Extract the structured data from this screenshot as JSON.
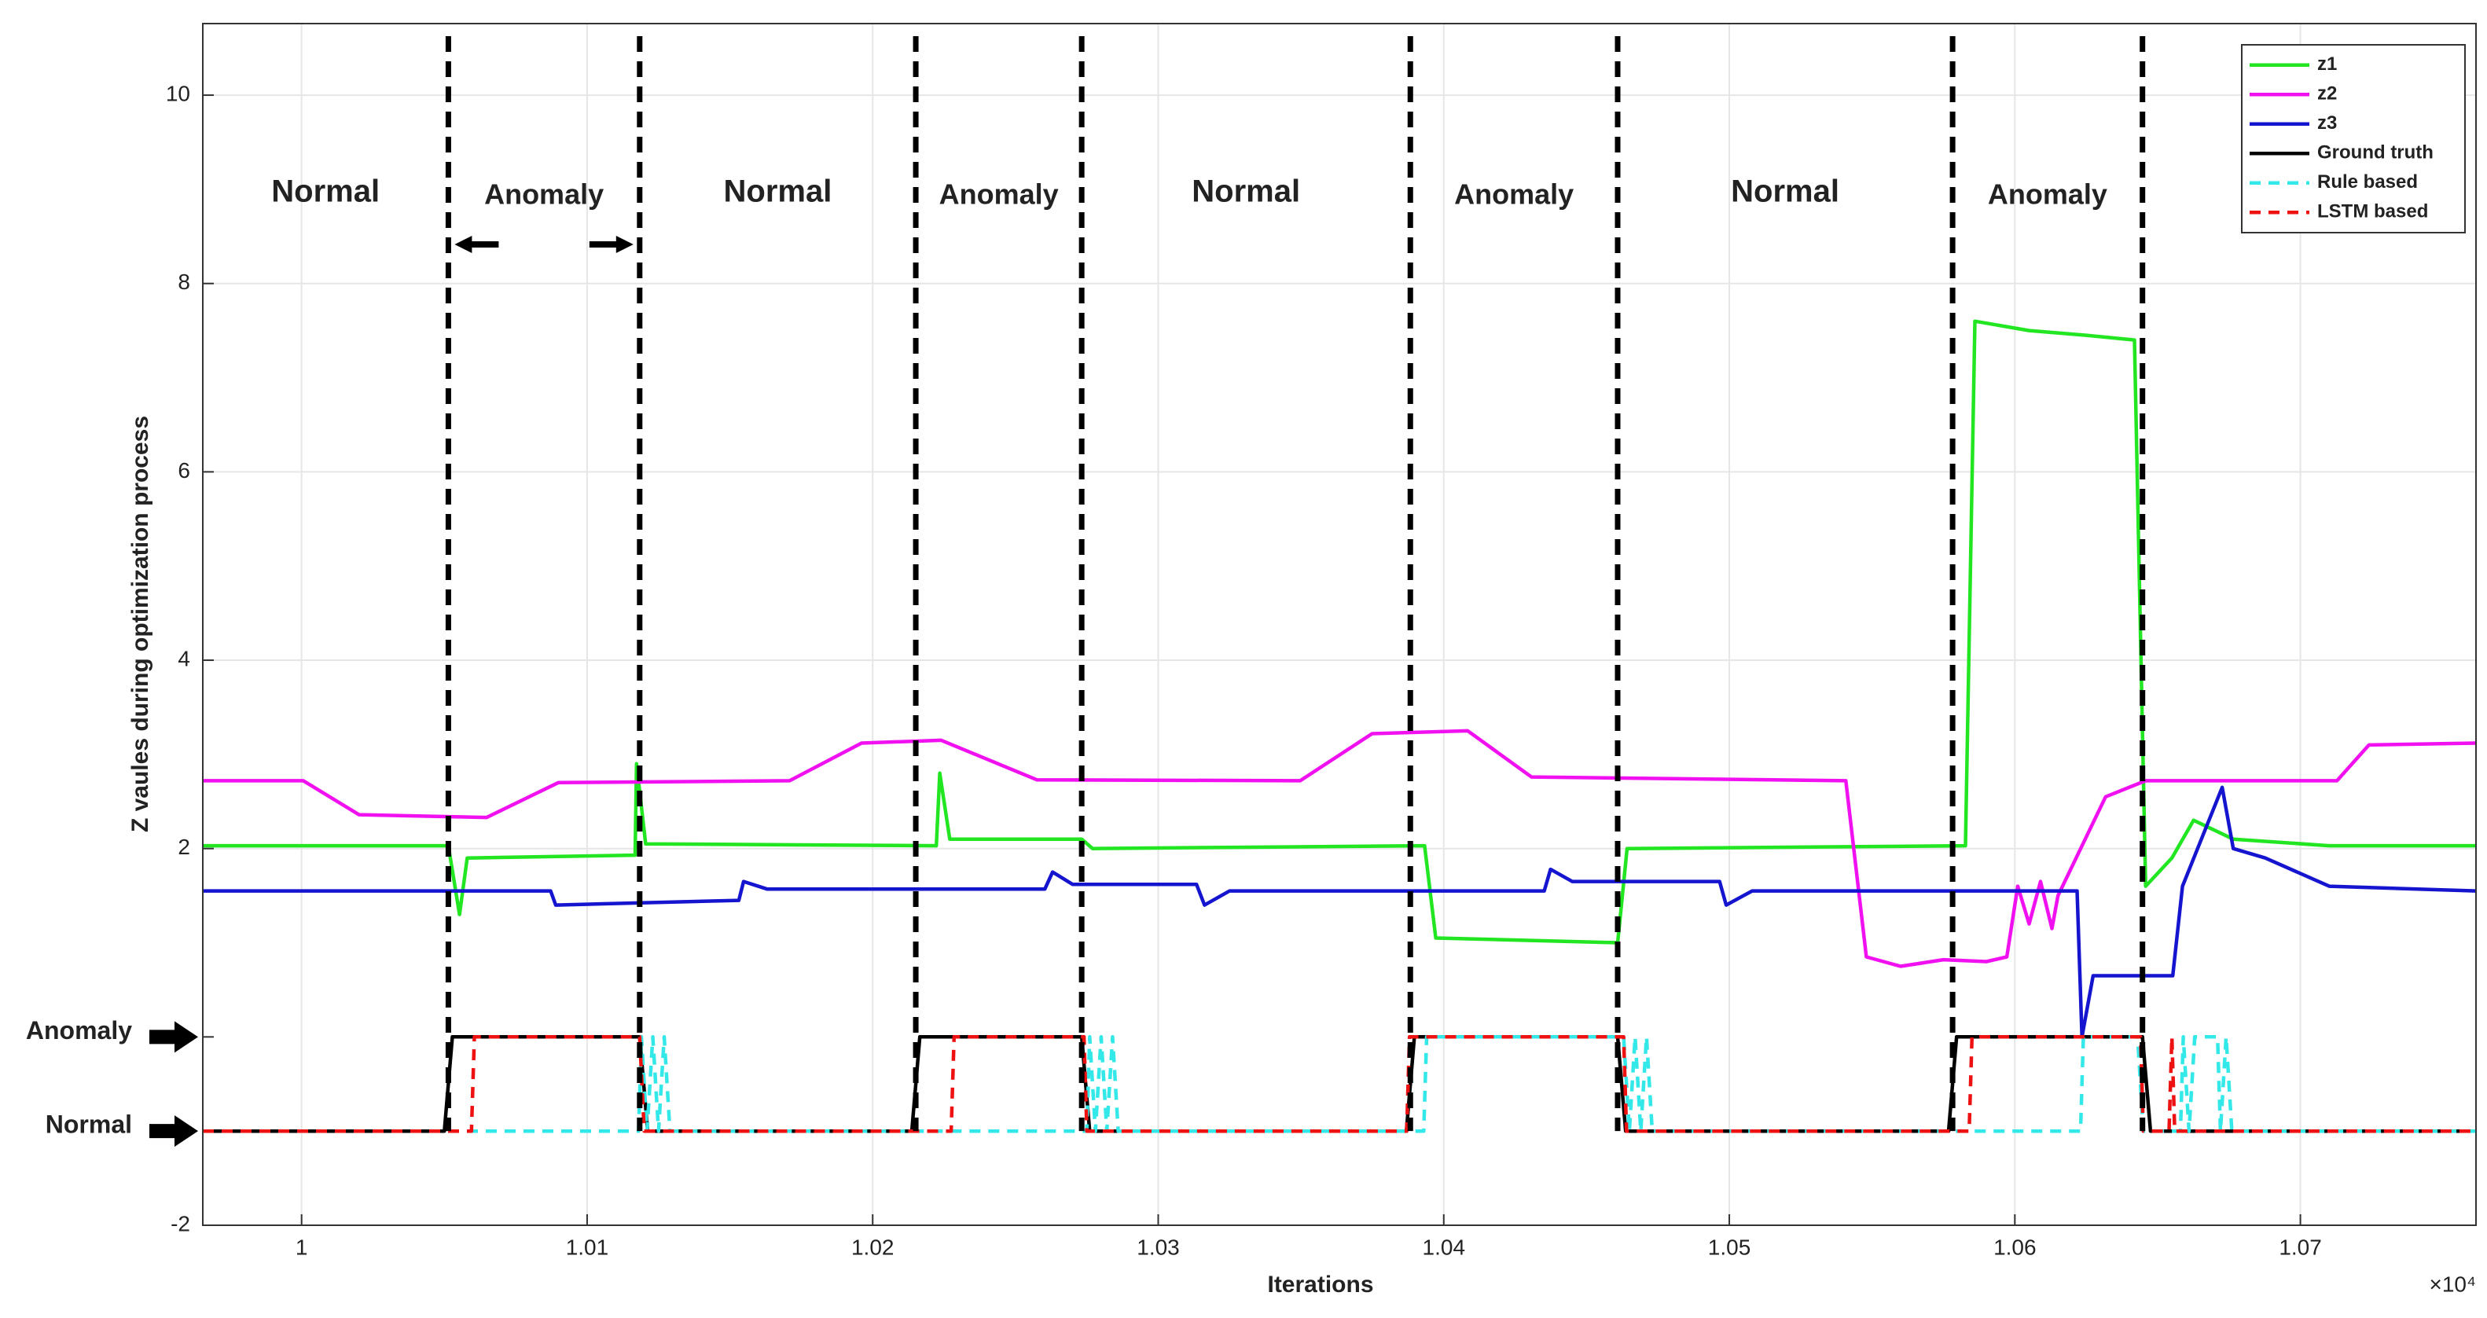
{
  "chart_data": {
    "type": "line",
    "xlabel": "Iterations",
    "ylabel": "Z vaules during optimization process",
    "x_multiplier": "×10⁴",
    "xlim": [
      0.99654,
      1.07615
    ],
    "xticks": [
      1,
      1.01,
      1.02,
      1.03,
      1.04,
      1.05,
      1.06,
      1.07
    ],
    "ylim": [
      -2,
      10.76
    ],
    "yticks": [
      -2,
      {
        "value": -1,
        "label": "Normal"
      },
      {
        "value": 0,
        "label": "Anomaly"
      },
      2,
      4,
      6,
      8,
      10
    ],
    "grid": true,
    "legend": "northeast",
    "boundaries": [
      1.00514,
      1.01184,
      1.02151,
      1.02732,
      1.03883,
      1.04609,
      1.05782,
      1.06447
    ],
    "regions": [
      "Normal",
      "Anomaly",
      "Normal",
      "Anomaly",
      "Normal",
      "Anomaly",
      "Normal",
      "Anomaly"
    ],
    "series": [
      {
        "name": "z1",
        "color": "#22e622",
        "style": "solid",
        "x": [
          0.99654,
          1.00514,
          1.00553,
          1.0058,
          1.01168,
          1.01173,
          1.01205,
          1.02223,
          1.02235,
          1.0227,
          1.02732,
          1.0277,
          1.03933,
          1.03972,
          1.04609,
          1.04642,
          1.05827,
          1.0586,
          1.0605,
          1.0625,
          1.06419,
          1.06458,
          1.0655,
          1.06626,
          1.06765,
          1.07101,
          1.07615
        ],
        "values": [
          2.03,
          2.03,
          1.3,
          1.9,
          1.93,
          2.9,
          2.05,
          2.03,
          2.8,
          2.1,
          2.1,
          2.0,
          2.03,
          1.05,
          1.0,
          2.0,
          2.03,
          7.6,
          7.5,
          7.45,
          7.4,
          1.6,
          1.9,
          2.3,
          2.1,
          2.03,
          2.03
        ]
      },
      {
        "name": "z2",
        "color": "#f010f0",
        "style": "solid",
        "x": [
          0.99654,
          1.00006,
          1.00201,
          1.00648,
          1.00899,
          1.01709,
          1.01961,
          1.0224,
          1.02575,
          1.03497,
          1.03749,
          1.04084,
          1.04307,
          1.05408,
          1.0548,
          1.056,
          1.0575,
          1.059,
          1.05972,
          1.0601,
          1.0605,
          1.0609,
          1.0613,
          1.06151,
          1.06318,
          1.06458,
          1.07128,
          1.0724,
          1.07615
        ],
        "values": [
          2.72,
          2.72,
          2.36,
          2.33,
          2.7,
          2.72,
          3.12,
          3.15,
          2.73,
          2.72,
          3.22,
          3.25,
          2.76,
          2.72,
          0.85,
          0.75,
          0.82,
          0.8,
          0.85,
          1.6,
          1.2,
          1.65,
          1.15,
          1.5,
          2.55,
          2.72,
          2.72,
          3.1,
          3.12
        ]
      },
      {
        "name": "z3",
        "color": "#1515d0",
        "style": "solid",
        "x": [
          0.99654,
          1.00872,
          1.0089,
          1.01531,
          1.01548,
          1.0163,
          1.02603,
          1.0263,
          1.027,
          1.03134,
          1.03162,
          1.0325,
          1.04352,
          1.04374,
          1.0445,
          1.04966,
          1.04989,
          1.0508,
          1.06218,
          1.06235,
          1.06274,
          1.06553,
          1.06587,
          1.06726,
          1.06765,
          1.06877,
          1.07101,
          1.07615
        ],
        "values": [
          1.55,
          1.55,
          1.4,
          1.45,
          1.65,
          1.57,
          1.57,
          1.75,
          1.62,
          1.62,
          1.4,
          1.55,
          1.55,
          1.78,
          1.65,
          1.65,
          1.4,
          1.55,
          1.55,
          0.0,
          0.65,
          0.65,
          1.6,
          2.65,
          2.0,
          1.9,
          1.6,
          1.55
        ]
      },
      {
        "name": "Ground truth",
        "color": "#000000",
        "style": "solid",
        "x": [
          0.99654,
          1.005,
          1.00528,
          1.01184,
          1.01212,
          1.02137,
          1.02165,
          1.02732,
          1.0276,
          1.03869,
          1.03897,
          1.04609,
          1.04637,
          1.05768,
          1.05796,
          1.06447,
          1.06475,
          1.07615
        ],
        "values": [
          -1,
          -1,
          0,
          0,
          -1,
          -1,
          0,
          0,
          -1,
          -1,
          0,
          0,
          -1,
          -1,
          0,
          0,
          -1,
          -1
        ]
      },
      {
        "name": "Rule based",
        "color": "#33e8e8",
        "style": "dashed",
        "x": [
          0.99654,
          1.0118,
          1.0119,
          1.0121,
          1.0123,
          1.0125,
          1.0127,
          1.0129,
          1.0275,
          1.0276,
          1.0278,
          1.028,
          1.0282,
          1.0284,
          1.0286,
          1.0393,
          1.0394,
          1.0463,
          1.0465,
          1.0467,
          1.0469,
          1.0471,
          1.0473,
          1.0623,
          1.0624,
          1.0643,
          1.0645,
          1.0658,
          1.0659,
          1.0661,
          1.0663,
          1.0671,
          1.0672,
          1.0674,
          1.0676,
          1.07615
        ],
        "values": [
          -1,
          -1,
          0,
          -1,
          0,
          -1,
          0,
          -1,
          -1,
          0,
          -1,
          0,
          -1,
          0,
          -1,
          -1,
          0,
          0,
          -1,
          0,
          -1,
          0,
          -1,
          -1,
          0,
          0,
          -1,
          -1,
          0,
          -1,
          0,
          0,
          -1,
          0,
          -1,
          -1
        ]
      },
      {
        "name": "LSTM based",
        "color": "#ee1111",
        "style": "dashed",
        "x": [
          0.99654,
          1.00595,
          1.00605,
          1.01184,
          1.012,
          1.02275,
          1.02285,
          1.0274,
          1.0275,
          1.0387,
          1.0388,
          1.0463,
          1.0464,
          1.0584,
          1.0585,
          1.0644,
          1.0645,
          1.0654,
          1.0655,
          1.0656,
          1.07615
        ],
        "values": [
          -1,
          -1,
          0,
          0,
          -1,
          -1,
          0,
          0,
          -1,
          -1,
          0,
          0,
          -1,
          -1,
          0,
          0,
          -1,
          -1,
          0,
          -1,
          -1
        ]
      }
    ]
  }
}
